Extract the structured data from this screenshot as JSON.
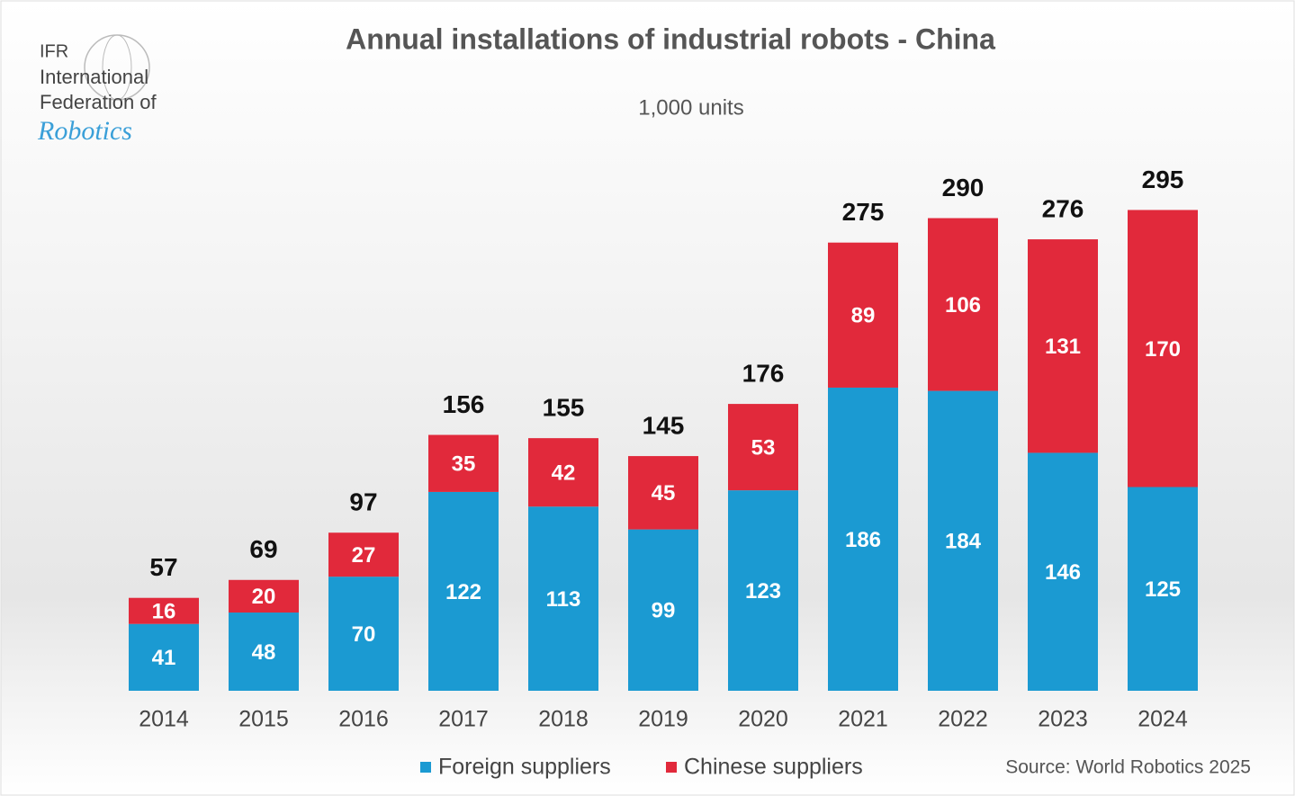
{
  "logo": {
    "line1": "IFR",
    "line2": "International",
    "line3": "Federation of",
    "line4": "Robotics"
  },
  "chart_data": {
    "type": "stacked_bar",
    "title": "Annual installations of industrial robots - China",
    "subtitle": "1,000 units",
    "categories": [
      "2014",
      "2015",
      "2016",
      "2017",
      "2018",
      "2019",
      "2020",
      "2021",
      "2022",
      "2023",
      "2024"
    ],
    "series": [
      {
        "name": "Foreign suppliers",
        "color": "#1b9ad2",
        "values": [
          41,
          48,
          70,
          122,
          113,
          99,
          123,
          186,
          184,
          146,
          125
        ]
      },
      {
        "name": "Chinese suppliers",
        "color": "#e1293b",
        "values": [
          16,
          20,
          27,
          35,
          42,
          45,
          53,
          89,
          106,
          131,
          170
        ]
      }
    ],
    "totals": [
      57,
      69,
      97,
      156,
      155,
      145,
      176,
      275,
      290,
      276,
      295
    ],
    "source": "Source: World Robotics 2025"
  }
}
